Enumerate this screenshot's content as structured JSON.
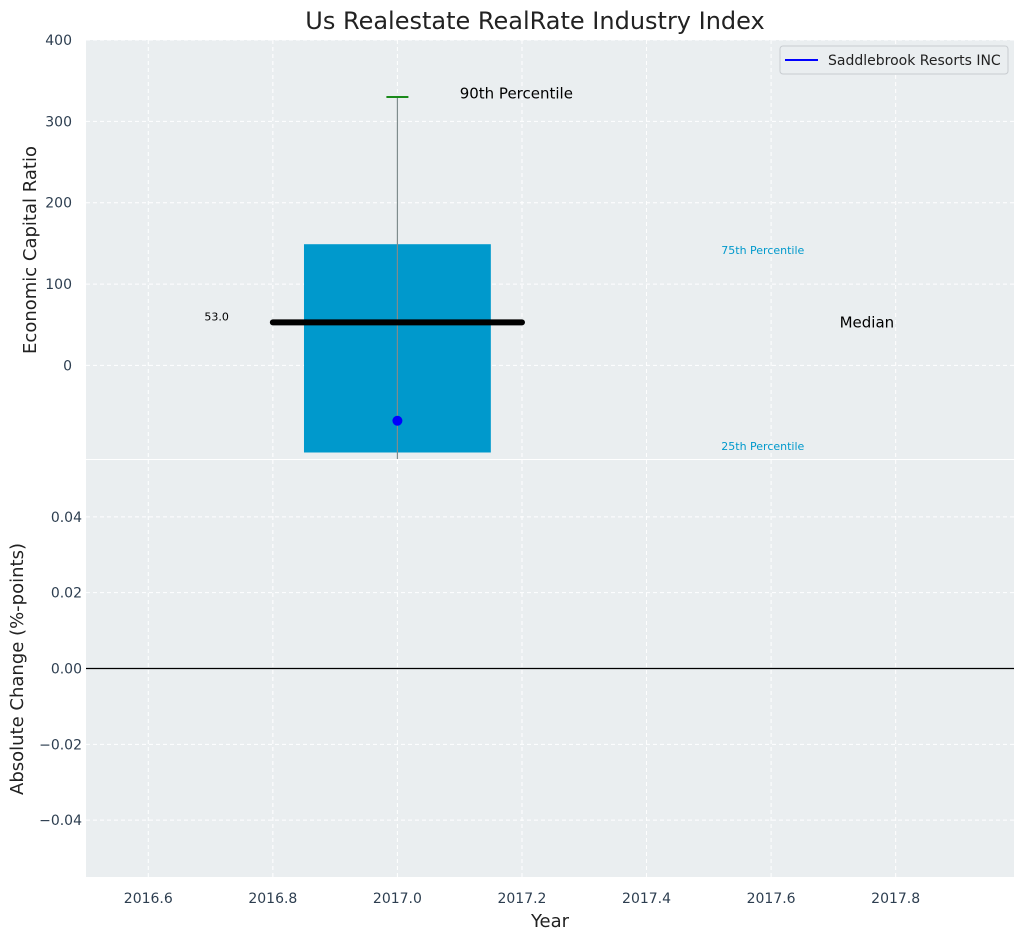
{
  "chart_data": [
    {
      "type": "box",
      "title": "Us Realestate RealRate Industry Index",
      "ylabel": "Economic Capital Ratio",
      "ylim": [
        -115,
        400
      ],
      "y_ticks": [
        0,
        100,
        200,
        300,
        400
      ],
      "y_tick_labels": [
        "0",
        "100",
        "200",
        "300",
        "400"
      ],
      "xlim": [
        2016.5,
        2017.99
      ],
      "grid": true,
      "legend": {
        "placement": "top-right",
        "entries": [
          "Saddlebrook Resorts INC"
        ]
      },
      "box": {
        "x": 2017.0,
        "x_left": 2016.85,
        "x_right": 2017.15,
        "q1": -107,
        "q3": 149,
        "median": 53.0,
        "median_x_range": [
          2016.8,
          2017.2
        ],
        "p90": 330,
        "whisker_bottom": -115,
        "color": "#0099cc"
      },
      "series": [
        {
          "name": "Saddlebrook Resorts INC",
          "x": [
            2017.0
          ],
          "values": [
            -68
          ],
          "color": "#0000ff"
        }
      ],
      "annotations": {
        "p90": {
          "text": "90th Percentile",
          "x": 2017.1,
          "y": 334
        },
        "p75": {
          "text": "75th Percentile",
          "x": 2017.52,
          "y": 142
        },
        "median": {
          "text": "Median",
          "x": 2017.71,
          "y": 53
        },
        "p25": {
          "text": "25th Percentile",
          "x": 2017.52,
          "y": -99
        },
        "median_value": {
          "text": "53.0",
          "x": 2016.69,
          "y": 60
        }
      }
    },
    {
      "type": "line",
      "ylabel": "Absolute Change (%-points)",
      "xlabel": "Year",
      "ylim": [
        -0.055,
        0.055
      ],
      "y_ticks": [
        -0.04,
        -0.02,
        0.0,
        0.02,
        0.04
      ],
      "y_tick_labels": [
        "−0.04",
        "−0.02",
        "0.00",
        "0.02",
        "0.04"
      ],
      "xlim": [
        2016.5,
        2017.99
      ],
      "x_ticks": [
        2016.6,
        2016.8,
        2017.0,
        2017.2,
        2017.4,
        2017.6,
        2017.8
      ],
      "x_tick_labels": [
        "2016.6",
        "2016.8",
        "2017.0",
        "2017.2",
        "2017.4",
        "2017.6",
        "2017.8"
      ],
      "grid": true,
      "reference_line": {
        "y": 0.0,
        "color": "#000000"
      }
    }
  ]
}
